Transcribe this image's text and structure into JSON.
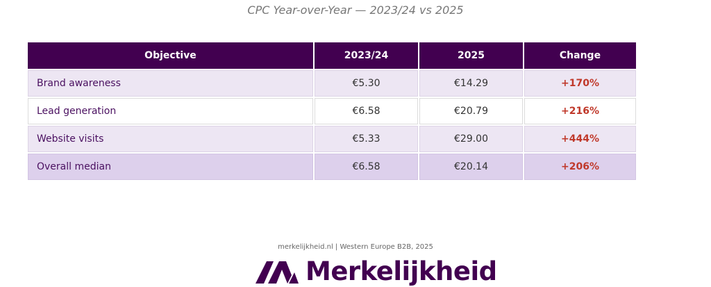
{
  "chart_data": {
    "type": "table",
    "title": "CPC Year-over-Year — 2023/24 vs 2025",
    "columns": [
      "Objective",
      "2023/24",
      "2025",
      "Change"
    ],
    "rows": [
      {
        "objective": "Brand awareness",
        "y2023_24": "€5.30",
        "y2025": "€14.29",
        "change": "+170%"
      },
      {
        "objective": "Lead generation",
        "y2023_24": "€6.58",
        "y2025": "€20.79",
        "change": "+216%"
      },
      {
        "objective": "Website visits",
        "y2023_24": "€5.33",
        "y2025": "€29.00",
        "change": "+444%"
      },
      {
        "objective": "Overall median",
        "y2023_24": "€6.58",
        "y2025": "€20.14",
        "change": "+206%"
      }
    ]
  },
  "footer": {
    "source": "merkelijkheid.nl  |  Western Europe B2B, 2025",
    "logo_text": "Merkelijkheid"
  },
  "colors": {
    "header_bg": "#420050",
    "row_alt": "#ede6f3",
    "row_median": "#ddd0ec",
    "change_text": "#c0392b",
    "brand": "#420050"
  }
}
